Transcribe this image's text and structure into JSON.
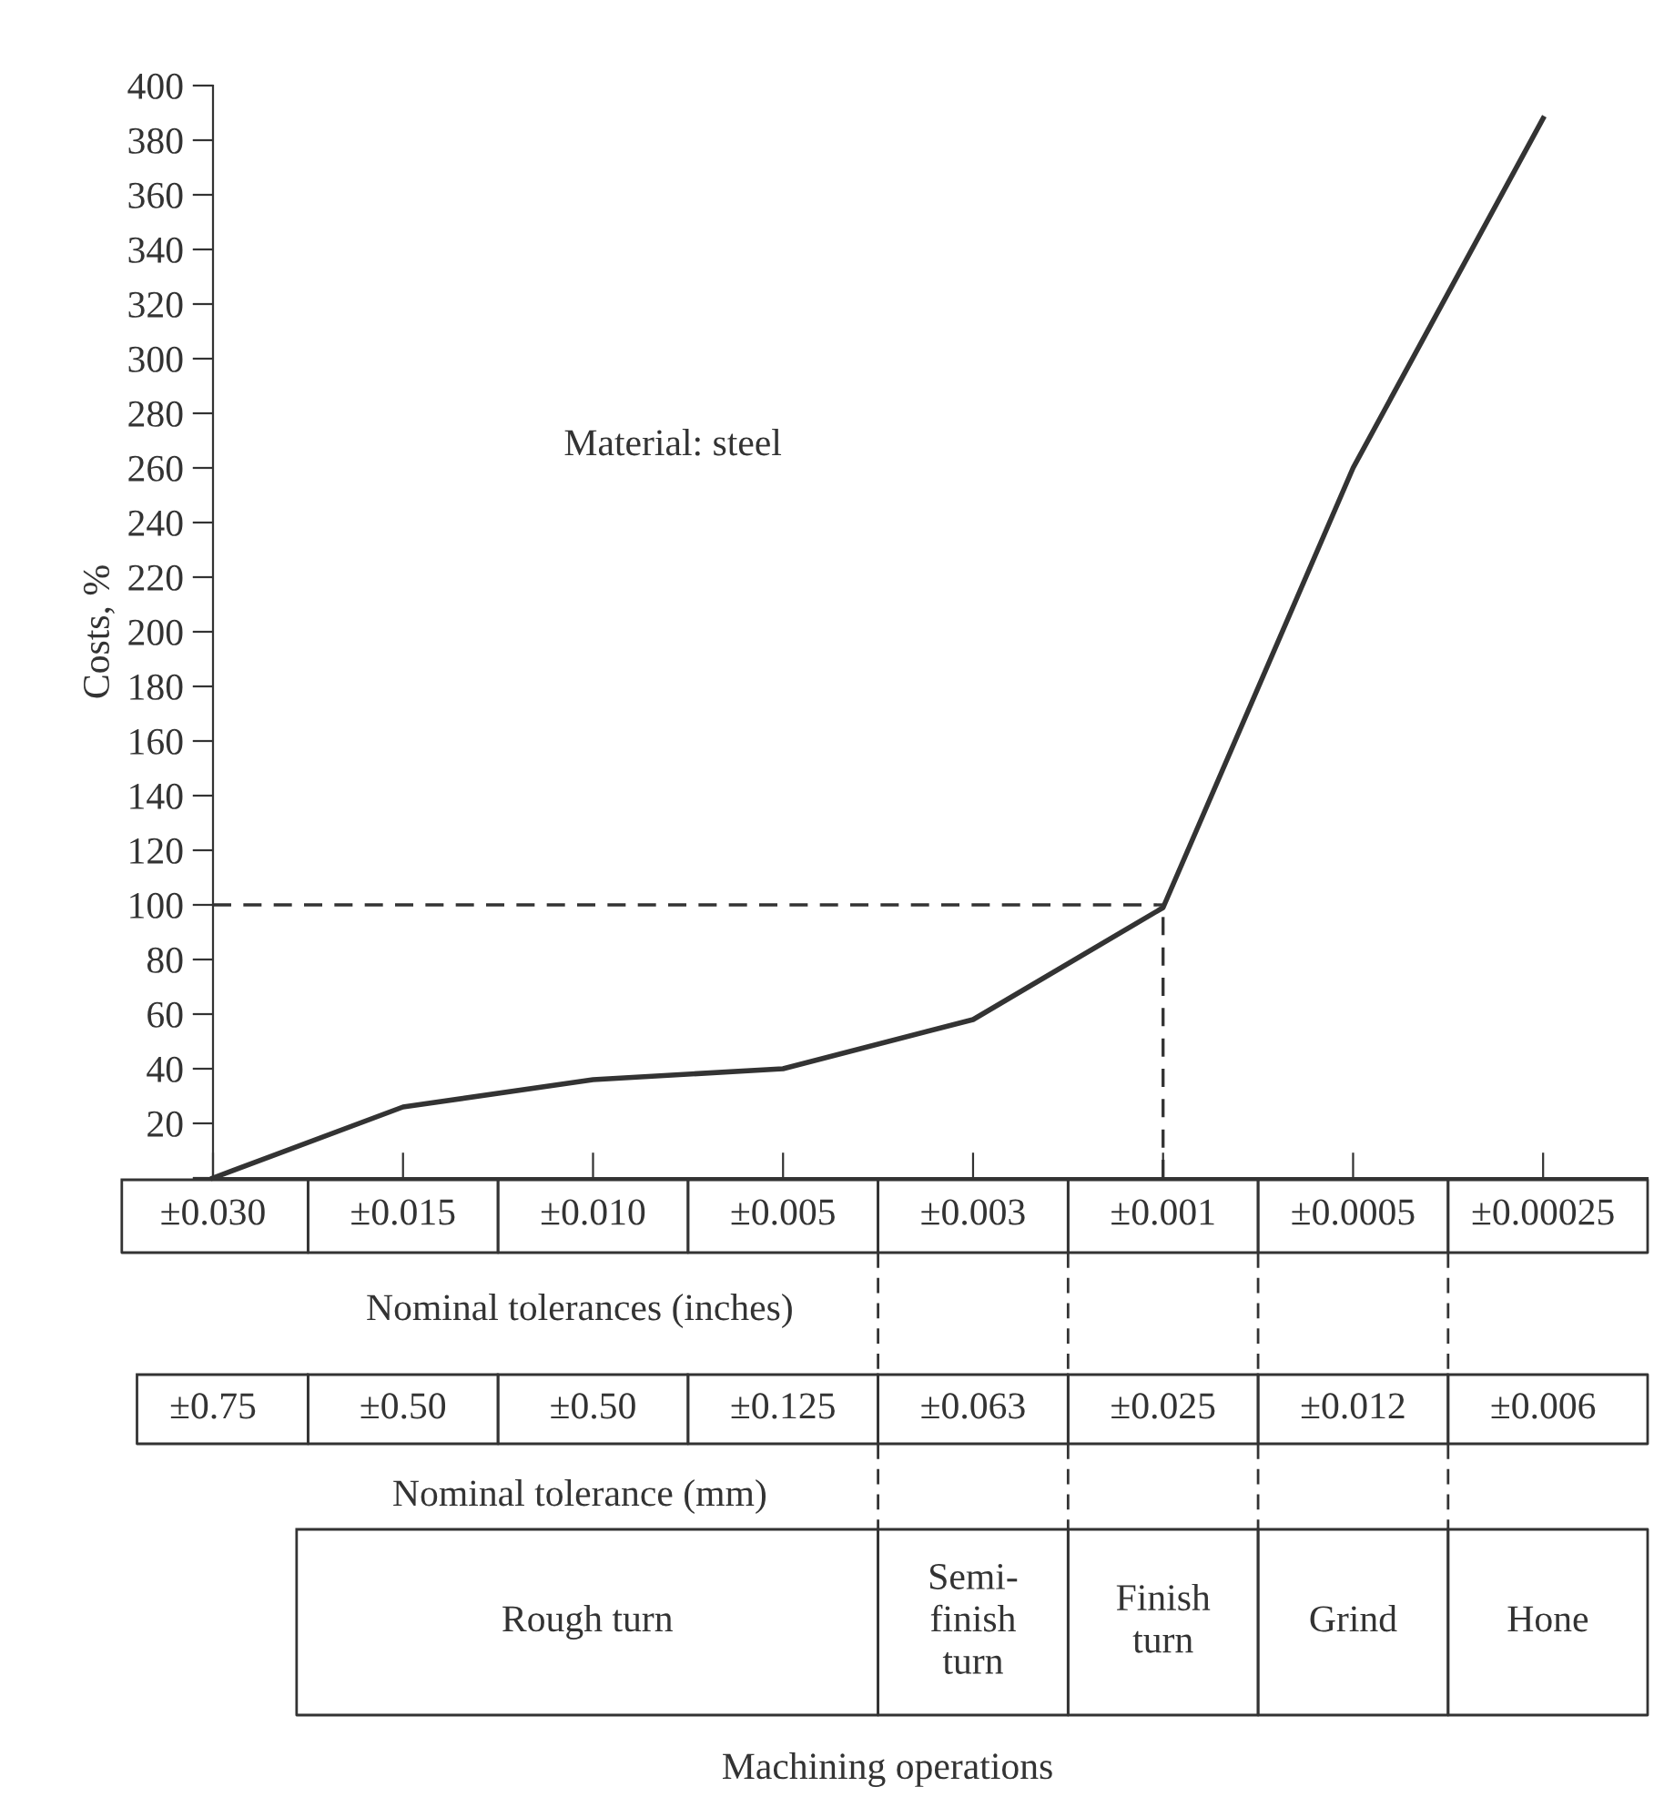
{
  "chart_data": {
    "type": "line",
    "ylabel": "Costs, %",
    "xlabel": "Nominal tolerances (inches)",
    "categories": [
      "±0.030",
      "±0.015",
      "±0.010",
      "±0.005",
      "±0.003",
      "±0.001",
      "±0.0005",
      "±0.00025"
    ],
    "series": [
      {
        "color": "#333333",
        "values": [
          0,
          26,
          36,
          40,
          58,
          99,
          260,
          388
        ]
      }
    ],
    "ylim": [
      0,
      400
    ],
    "yticks": [
      {
        "value": 0,
        "label": null
      },
      20,
      40,
      60,
      80,
      100,
      120,
      140,
      160,
      180,
      200,
      220,
      240,
      260,
      280,
      300,
      320,
      340,
      360,
      380,
      400
    ],
    "ref_lines": [
      {
        "axis": "y",
        "value": 100,
        "line_style": "dashed",
        "color": "#333333"
      },
      {
        "axis": "x",
        "value": "±0.001",
        "line_style": "dashed",
        "color": "#333333"
      }
    ],
    "annotations": [
      "Material: steel",
      "±0.75",
      "±0.50",
      "±0.50",
      "±0.125",
      "±0.063",
      "±0.025",
      "±0.012",
      "±0.006",
      "Nominal tolerance (mm)",
      "Rough turn",
      "Semi-\nfinish\nturn",
      "Finish\nturn",
      "Grind",
      "Hone",
      "Machining operations"
    ],
    "grid": false,
    "legend": false,
    "marker": "none",
    "line_style": "solid"
  }
}
